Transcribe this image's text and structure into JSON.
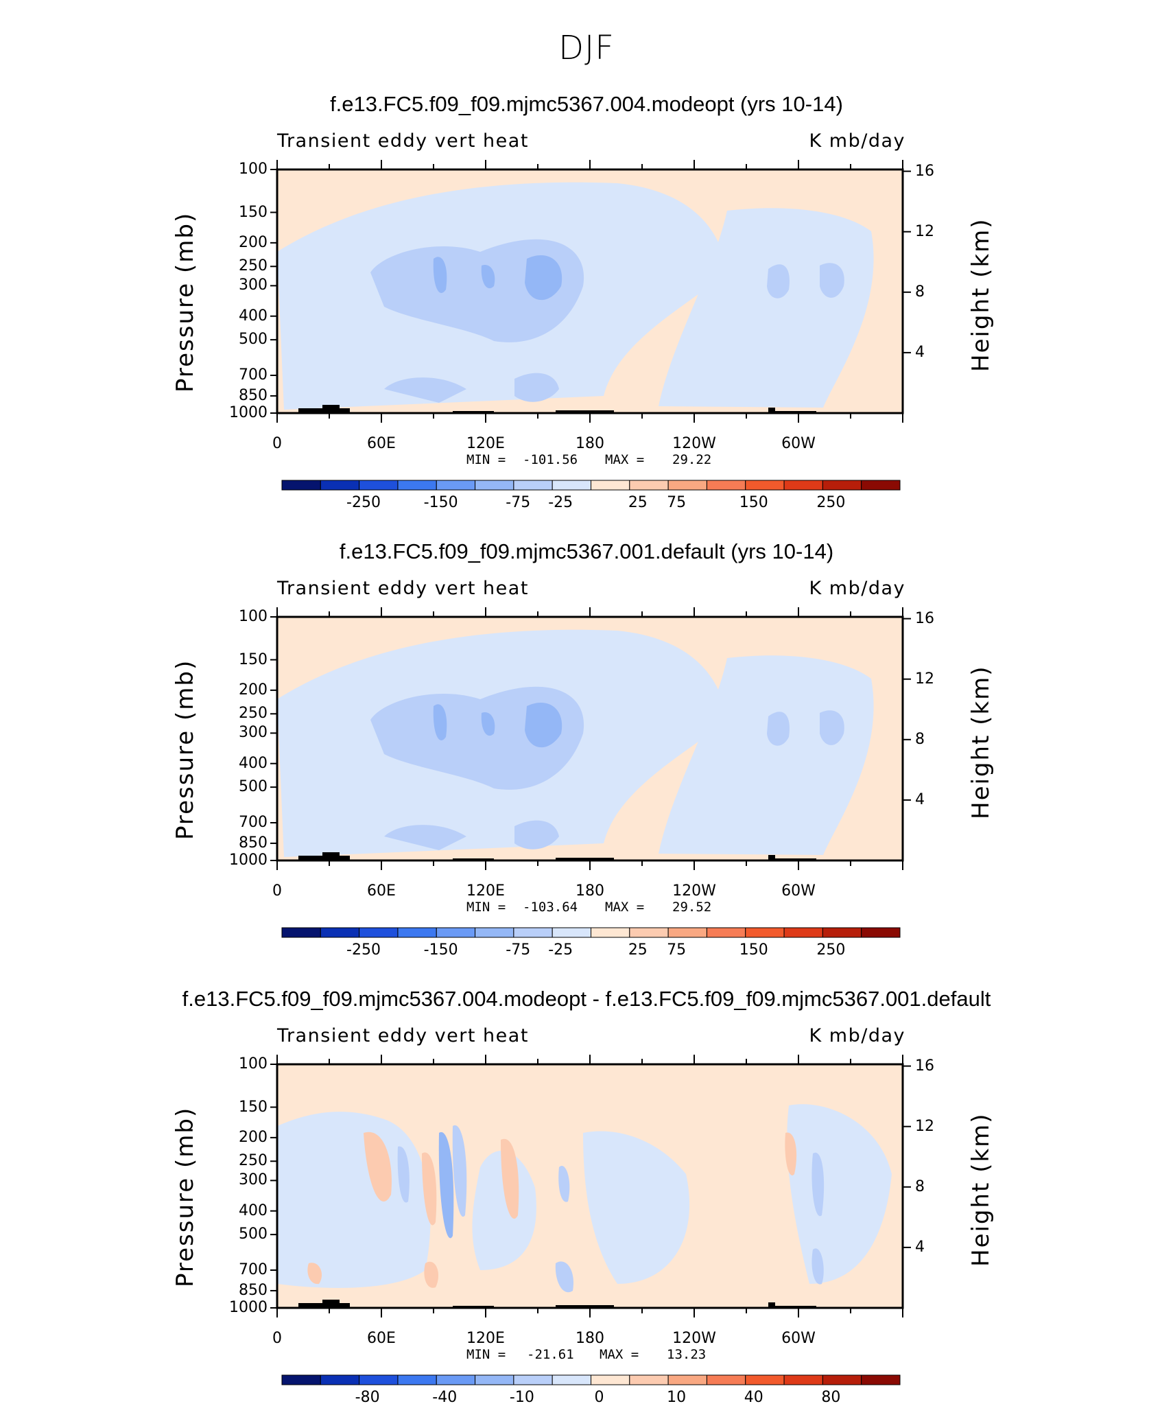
{
  "figure": {
    "title": "DJF"
  },
  "colors": {
    "ramp_div": [
      "#05146e",
      "#0a30b4",
      "#1e50dc",
      "#3c78f0",
      "#6a9af5",
      "#94b7f6",
      "#b9cff9",
      "#d8e6fb",
      "#fee7d3",
      "#fccbb0",
      "#f9a882",
      "#f67c55",
      "#f25a2c",
      "#de3a18",
      "#b61e0a",
      "#8a0a03"
    ],
    "land": "#000000"
  },
  "chart_data": [
    {
      "type": "heatmap",
      "title": "f.e13.FC5.f09_f09.mjmc5367.004.modeopt (yrs 10-14)",
      "left_string": "Transient eddy vert heat",
      "right_string": "K mb/day",
      "ylabel": "Pressure (mb)",
      "y2label": "Height (km)",
      "yticks": [
        "100",
        "150",
        "200",
        "250",
        "300",
        "400",
        "500",
        "700",
        "850",
        "1000"
      ],
      "y2ticks": [
        "16",
        "12",
        "8",
        "4"
      ],
      "xticks": [
        "0",
        "60E",
        "120E",
        "180",
        "120W",
        "60W"
      ],
      "xlim": [
        0,
        360
      ],
      "ylim": [
        1000,
        100
      ],
      "ylog": true,
      "min_label": "MIN =",
      "min_value": "-101.56",
      "max_label": "MAX =",
      "max_value": "29.22",
      "colorbar_ticks": [
        "-250",
        "-150",
        "-75",
        "-25",
        "25",
        "75",
        "150",
        "250"
      ],
      "colorbar_levels": [
        -300,
        -250,
        -200,
        -150,
        -100,
        -75,
        -50,
        -25,
        0,
        25,
        50,
        75,
        100,
        150,
        200,
        250,
        300
      ]
    },
    {
      "type": "heatmap",
      "title": "f.e13.FC5.f09_f09.mjmc5367.001.default (yrs 10-14)",
      "left_string": "Transient eddy vert heat",
      "right_string": "K mb/day",
      "ylabel": "Pressure (mb)",
      "y2label": "Height (km)",
      "yticks": [
        "100",
        "150",
        "200",
        "250",
        "300",
        "400",
        "500",
        "700",
        "850",
        "1000"
      ],
      "y2ticks": [
        "16",
        "12",
        "8",
        "4"
      ],
      "xticks": [
        "0",
        "60E",
        "120E",
        "180",
        "120W",
        "60W"
      ],
      "xlim": [
        0,
        360
      ],
      "ylim": [
        1000,
        100
      ],
      "ylog": true,
      "min_label": "MIN =",
      "min_value": "-103.64",
      "max_label": "MAX =",
      "max_value": "29.52",
      "colorbar_ticks": [
        "-250",
        "-150",
        "-75",
        "-25",
        "25",
        "75",
        "150",
        "250"
      ],
      "colorbar_levels": [
        -300,
        -250,
        -200,
        -150,
        -100,
        -75,
        -50,
        -25,
        0,
        25,
        50,
        75,
        100,
        150,
        200,
        250,
        300
      ]
    },
    {
      "type": "heatmap",
      "title": "f.e13.FC5.f09_f09.mjmc5367.004.modeopt - f.e13.FC5.f09_f09.mjmc5367.001.default",
      "left_string": "Transient eddy vert heat",
      "right_string": "K mb/day",
      "ylabel": "Pressure (mb)",
      "y2label": "Height (km)",
      "yticks": [
        "100",
        "150",
        "200",
        "250",
        "300",
        "400",
        "500",
        "700",
        "850",
        "1000"
      ],
      "y2ticks": [
        "16",
        "12",
        "8",
        "4"
      ],
      "xticks": [
        "0",
        "60E",
        "120E",
        "180",
        "120W",
        "60W"
      ],
      "xlim": [
        0,
        360
      ],
      "ylim": [
        1000,
        100
      ],
      "ylog": true,
      "min_label": "MIN =",
      "min_value": "-21.61",
      "max_label": "MAX =",
      "max_value": "13.23",
      "colorbar_ticks": [
        "-80",
        "-40",
        "-10",
        "0",
        "10",
        "40",
        "80"
      ],
      "colorbar_levels": [
        -120,
        -100,
        -80,
        -60,
        -40,
        -20,
        -10,
        -5,
        0,
        5,
        10,
        20,
        40,
        60,
        80,
        100,
        120
      ]
    }
  ]
}
